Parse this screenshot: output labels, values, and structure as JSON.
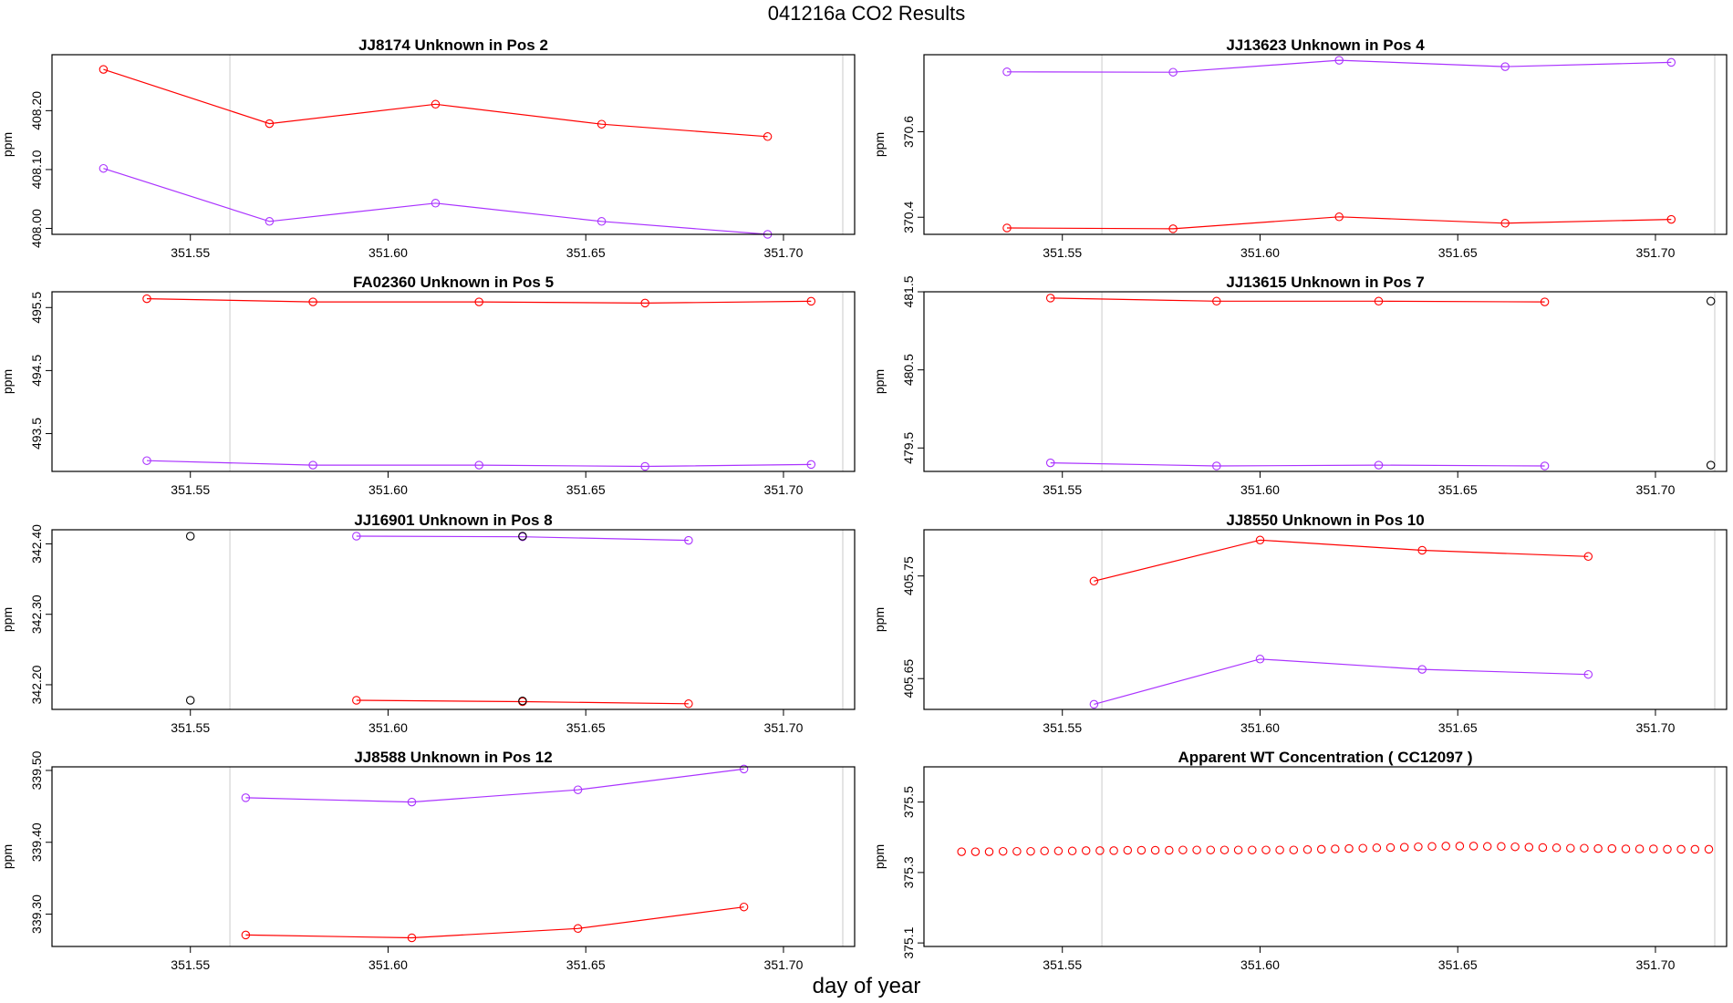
{
  "figure": {
    "title": "041216a  CO2 Results",
    "xlabel": "day of year"
  },
  "colors": {
    "red": "#ff0000",
    "purple": "#aa33ff",
    "black": "#000000",
    "gridline": "#d3d3d3",
    "frame": "#000000"
  },
  "chart_data": [
    {
      "type": "line",
      "title": "JJ8174    Unknown in Pos 2",
      "ylabel": "ppm",
      "xlim": [
        351.515,
        351.718
      ],
      "ylim": [
        407.99,
        408.295
      ],
      "xticks": [
        351.55,
        351.6,
        351.65,
        351.7
      ],
      "xtick_labels": [
        "351.55",
        "351.60",
        "351.65",
        "351.70"
      ],
      "yticks": [
        408.0,
        408.1,
        408.2
      ],
      "ytick_labels": [
        "408.00",
        "408.10",
        "408.20"
      ],
      "vlines": [
        351.56,
        351.715
      ],
      "series": [
        {
          "name": "red",
          "color": "red",
          "x": [
            351.528,
            351.57,
            351.612,
            351.654,
            351.696
          ],
          "y": [
            408.27,
            408.178,
            408.211,
            408.177,
            408.156
          ]
        },
        {
          "name": "purple",
          "color": "purple",
          "x": [
            351.528,
            351.57,
            351.612,
            351.654,
            351.696
          ],
          "y": [
            408.102,
            408.012,
            408.043,
            408.012,
            407.99
          ]
        }
      ]
    },
    {
      "type": "line",
      "title": "JJ13623    Unknown in Pos 4",
      "ylabel": "ppm",
      "xlim": [
        351.515,
        351.718
      ],
      "ylim": [
        370.36,
        370.78
      ],
      "xticks": [
        351.55,
        351.6,
        351.65,
        351.7
      ],
      "xtick_labels": [
        "351.55",
        "351.60",
        "351.65",
        "351.70"
      ],
      "yticks": [
        370.4,
        370.6
      ],
      "ytick_labels": [
        "370.4",
        "370.6"
      ],
      "vlines": [
        351.56,
        351.715
      ],
      "series": [
        {
          "name": "purple",
          "color": "purple",
          "x": [
            351.536,
            351.578,
            351.62,
            351.662,
            351.704
          ],
          "y": [
            370.74,
            370.739,
            370.767,
            370.752,
            370.762
          ]
        },
        {
          "name": "red",
          "color": "red",
          "x": [
            351.536,
            351.578,
            351.62,
            351.662,
            351.704
          ],
          "y": [
            370.375,
            370.373,
            370.401,
            370.386,
            370.395
          ]
        }
      ]
    },
    {
      "type": "line",
      "title": "FA02360    Unknown in Pos 5",
      "ylabel": "ppm",
      "xlim": [
        351.515,
        351.718
      ],
      "ylim": [
        492.9,
        495.75
      ],
      "xticks": [
        351.55,
        351.6,
        351.65,
        351.7
      ],
      "xtick_labels": [
        "351.55",
        "351.60",
        "351.65",
        "351.70"
      ],
      "yticks": [
        493.5,
        494.5,
        495.5
      ],
      "ytick_labels": [
        "493.5",
        "494.5",
        "495.5"
      ],
      "vlines": [
        351.56,
        351.715
      ],
      "series": [
        {
          "name": "red",
          "color": "red",
          "x": [
            351.539,
            351.581,
            351.623,
            351.665,
            351.707
          ],
          "y": [
            495.64,
            495.59,
            495.59,
            495.57,
            495.6
          ]
        },
        {
          "name": "purple",
          "color": "purple",
          "x": [
            351.539,
            351.581,
            351.623,
            351.665,
            351.707
          ],
          "y": [
            493.07,
            493.0,
            493.0,
            492.98,
            493.01
          ]
        }
      ]
    },
    {
      "type": "line",
      "title": "JJ13615    Unknown in Pos 7",
      "ylabel": "ppm",
      "xlim": [
        351.515,
        351.718
      ],
      "ylim": [
        479.2,
        481.5
      ],
      "xticks": [
        351.55,
        351.6,
        351.65,
        351.7
      ],
      "xtick_labels": [
        "351.55",
        "351.60",
        "351.65",
        "351.70"
      ],
      "yticks": [
        479.5,
        480.5,
        481.5
      ],
      "ytick_labels": [
        "479.5",
        "480.5",
        "481.5"
      ],
      "vlines": [
        351.56,
        351.715
      ],
      "series": [
        {
          "name": "red",
          "color": "red",
          "x": [
            351.547,
            351.589,
            351.63,
            351.672
          ],
          "y": [
            481.42,
            481.38,
            481.38,
            481.37
          ]
        },
        {
          "name": "purple",
          "color": "purple",
          "x": [
            351.547,
            351.589,
            351.63,
            351.672
          ],
          "y": [
            479.31,
            479.27,
            479.28,
            479.27
          ]
        },
        {
          "name": "black-top",
          "color": "black",
          "lines": false,
          "x": [
            351.714
          ],
          "y": [
            481.38
          ]
        },
        {
          "name": "black-bottom",
          "color": "black",
          "lines": false,
          "x": [
            351.714
          ],
          "y": [
            479.28
          ]
        }
      ]
    },
    {
      "type": "line",
      "title": "JJ16901    Unknown in Pos 8",
      "ylabel": "ppm",
      "xlim": [
        351.515,
        351.718
      ],
      "ylim": [
        342.165,
        342.42
      ],
      "xticks": [
        351.55,
        351.6,
        351.65,
        351.7
      ],
      "xtick_labels": [
        "351.55",
        "351.60",
        "351.65",
        "351.70"
      ],
      "yticks": [
        342.2,
        342.3,
        342.4
      ],
      "ytick_labels": [
        "342.20",
        "342.30",
        "342.40"
      ],
      "vlines": [
        351.56,
        351.715
      ],
      "series": [
        {
          "name": "purple",
          "color": "purple",
          "x": [
            351.592,
            351.634,
            351.676
          ],
          "y": [
            342.411,
            342.41,
            342.405
          ]
        },
        {
          "name": "red",
          "color": "red",
          "x": [
            351.592,
            351.634,
            351.676
          ],
          "y": [
            342.178,
            342.176,
            342.173
          ]
        },
        {
          "name": "black-markers",
          "color": "black",
          "lines": false,
          "x": [
            351.55,
            351.55,
            351.634,
            351.634
          ],
          "y": [
            342.411,
            342.178,
            342.411,
            342.177
          ]
        }
      ]
    },
    {
      "type": "line",
      "title": "JJ8550    Unknown in Pos 10",
      "ylabel": "ppm",
      "xlim": [
        351.515,
        351.718
      ],
      "ylim": [
        405.62,
        405.795
      ],
      "xticks": [
        351.55,
        351.6,
        351.65,
        351.7
      ],
      "xtick_labels": [
        "351.55",
        "351.60",
        "351.65",
        "351.70"
      ],
      "yticks": [
        405.65,
        405.75
      ],
      "ytick_labels": [
        "405.65",
        "405.75"
      ],
      "vlines": [
        351.56,
        351.715
      ],
      "series": [
        {
          "name": "red",
          "color": "red",
          "x": [
            351.558,
            351.6,
            351.641,
            351.683
          ],
          "y": [
            405.745,
            405.785,
            405.775,
            405.769
          ]
        },
        {
          "name": "purple",
          "color": "purple",
          "x": [
            351.558,
            351.6,
            351.641,
            351.683
          ],
          "y": [
            405.625,
            405.669,
            405.659,
            405.654
          ]
        }
      ]
    },
    {
      "type": "line",
      "title": "JJ8588    Unknown in Pos 12",
      "ylabel": "ppm",
      "xlim": [
        351.515,
        351.718
      ],
      "ylim": [
        339.255,
        339.505
      ],
      "xticks": [
        351.55,
        351.6,
        351.65,
        351.7
      ],
      "xtick_labels": [
        "351.55",
        "351.60",
        "351.65",
        "351.70"
      ],
      "yticks": [
        339.3,
        339.4,
        339.5
      ],
      "ytick_labels": [
        "339.30",
        "339.40",
        "339.50"
      ],
      "vlines": [
        351.56,
        351.715
      ],
      "series": [
        {
          "name": "purple",
          "color": "purple",
          "x": [
            351.564,
            351.606,
            351.648,
            351.69
          ],
          "y": [
            339.462,
            339.456,
            339.473,
            339.502
          ]
        },
        {
          "name": "red",
          "color": "red",
          "x": [
            351.564,
            351.606,
            351.648,
            351.69
          ],
          "y": [
            339.271,
            339.267,
            339.28,
            339.31
          ]
        }
      ]
    },
    {
      "type": "scatter",
      "title": "Apparent WT Concentration ( CC12097 )",
      "ylabel": "ppm",
      "xlim": [
        351.515,
        351.718
      ],
      "ylim": [
        375.09,
        375.6
      ],
      "xticks": [
        351.55,
        351.6,
        351.65,
        351.7
      ],
      "xtick_labels": [
        "351.55",
        "351.60",
        "351.65",
        "351.70"
      ],
      "yticks": [
        375.1,
        375.3,
        375.5
      ],
      "ytick_labels": [
        "375.1",
        "375.3",
        "375.5"
      ],
      "vlines": [
        351.56,
        351.715
      ],
      "series": [
        {
          "name": "red",
          "color": "red",
          "lines": false,
          "x": [
            351.5245,
            351.528,
            351.5315,
            351.535,
            351.5385,
            351.542,
            351.5455,
            351.549,
            351.5525,
            351.556,
            351.5595,
            351.563,
            351.5665,
            351.57,
            351.5735,
            351.577,
            351.5805,
            351.584,
            351.5875,
            351.591,
            351.5945,
            351.598,
            351.6015,
            351.605,
            351.6085,
            351.612,
            351.6155,
            351.619,
            351.6225,
            351.626,
            351.6295,
            351.633,
            351.6365,
            351.64,
            351.6435,
            351.647,
            351.6505,
            351.654,
            351.6575,
            351.661,
            351.6645,
            351.668,
            351.6715,
            351.675,
            351.6785,
            351.682,
            351.6855,
            351.689,
            351.6925,
            351.696,
            351.6995,
            351.703,
            351.7065,
            351.71,
            351.7135
          ],
          "y": [
            375.359,
            375.359,
            375.359,
            375.36,
            375.36,
            375.36,
            375.361,
            375.361,
            375.361,
            375.362,
            375.362,
            375.362,
            375.363,
            375.363,
            375.363,
            375.363,
            375.364,
            375.364,
            375.364,
            375.364,
            375.364,
            375.364,
            375.364,
            375.364,
            375.364,
            375.365,
            375.366,
            375.367,
            375.368,
            375.369,
            375.37,
            375.371,
            375.372,
            375.373,
            375.374,
            375.375,
            375.375,
            375.375,
            375.374,
            375.374,
            375.373,
            375.372,
            375.371,
            375.37,
            375.369,
            375.369,
            375.368,
            375.368,
            375.367,
            375.367,
            375.367,
            375.366,
            375.366,
            375.366,
            375.366
          ]
        }
      ]
    }
  ]
}
